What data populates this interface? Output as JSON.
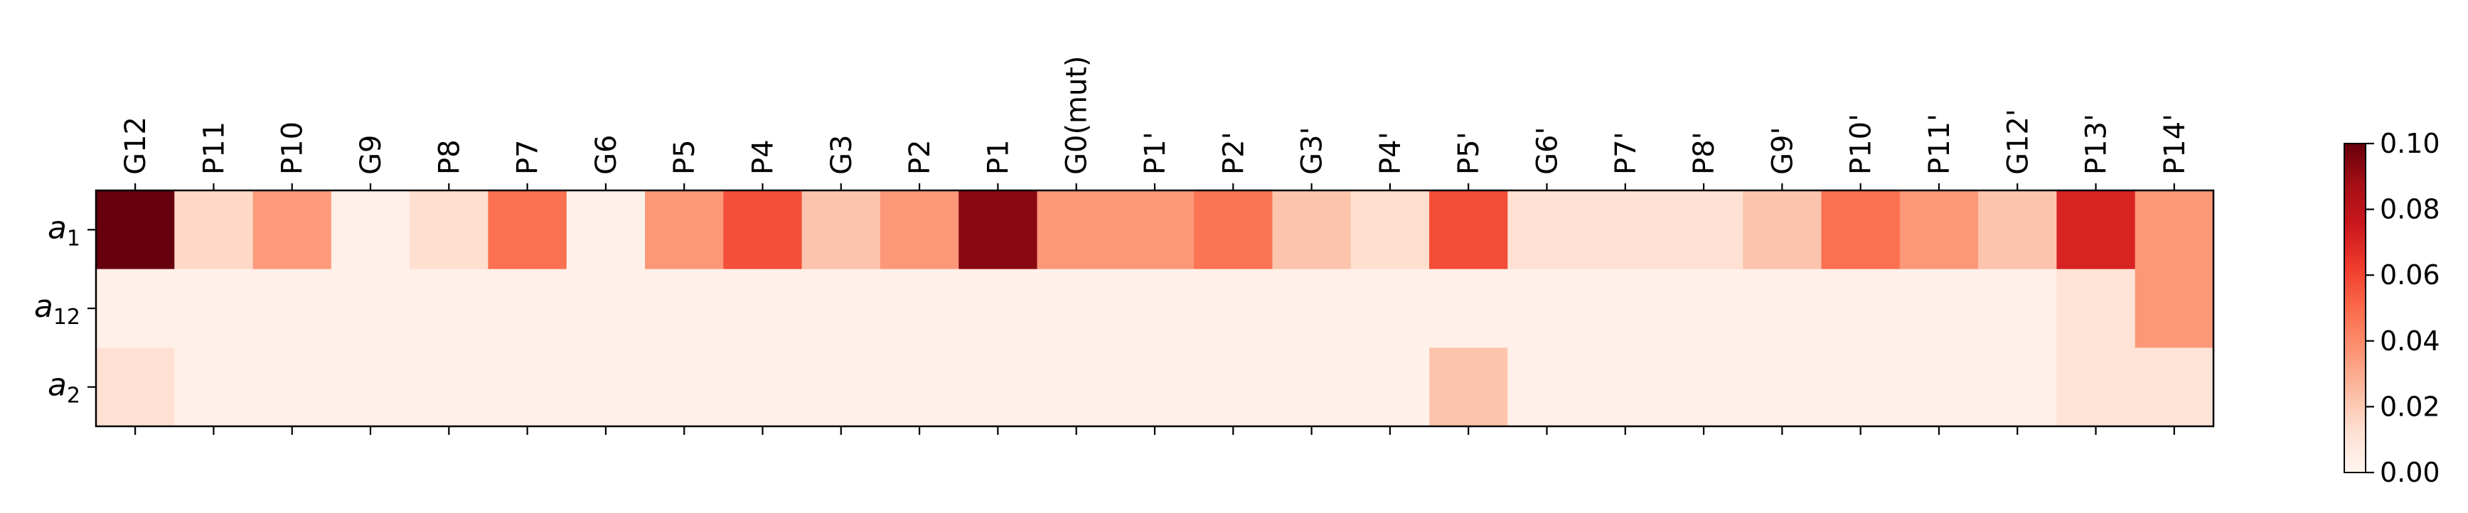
{
  "chart_data": {
    "type": "heatmap",
    "title": "",
    "xlabel": "",
    "ylabel": "",
    "x_labels": [
      "G12",
      "P11",
      "P10",
      "G9",
      "P8",
      "P7",
      "G6",
      "P5",
      "P4",
      "G3",
      "P2",
      "P1",
      "G0(mut)",
      "P1'",
      "P2'",
      "G3'",
      "P4'",
      "P5'",
      "G6'",
      "P7'",
      "P8'",
      "G9'",
      "P10'",
      "P11'",
      "G12'",
      "P13'",
      "P14'"
    ],
    "rows": [
      {
        "label": "a",
        "subscript": "1"
      },
      {
        "label": "a",
        "subscript": "12"
      },
      {
        "label": "a",
        "subscript": "2"
      }
    ],
    "values": [
      [
        0.1,
        0.015,
        0.035,
        0.003,
        0.013,
        0.048,
        0.003,
        0.036,
        0.057,
        0.022,
        0.036,
        0.093,
        0.036,
        0.036,
        0.047,
        0.022,
        0.013,
        0.058,
        0.012,
        0.012,
        0.012,
        0.022,
        0.048,
        0.036,
        0.022,
        0.071,
        0.036
      ],
      [
        0.003,
        0.003,
        0.003,
        0.003,
        0.003,
        0.003,
        0.003,
        0.003,
        0.003,
        0.003,
        0.003,
        0.003,
        0.003,
        0.003,
        0.003,
        0.003,
        0.003,
        0.003,
        0.003,
        0.003,
        0.003,
        0.003,
        0.003,
        0.003,
        0.003,
        0.011,
        0.036
      ],
      [
        0.012,
        0.003,
        0.003,
        0.003,
        0.003,
        0.003,
        0.003,
        0.003,
        0.003,
        0.003,
        0.003,
        0.003,
        0.003,
        0.003,
        0.003,
        0.003,
        0.003,
        0.022,
        0.003,
        0.003,
        0.003,
        0.003,
        0.003,
        0.003,
        0.003,
        0.011,
        0.011
      ]
    ],
    "colormap": "Reds",
    "colorbar": {
      "range": [
        0.0,
        0.1
      ],
      "tick_values": [
        0.0,
        0.02,
        0.04,
        0.06,
        0.08,
        0.1
      ],
      "tick_labels": [
        "0.00",
        "0.02",
        "0.04",
        "0.06",
        "0.08",
        "0.10"
      ]
    },
    "grid": false,
    "legend": "none"
  }
}
